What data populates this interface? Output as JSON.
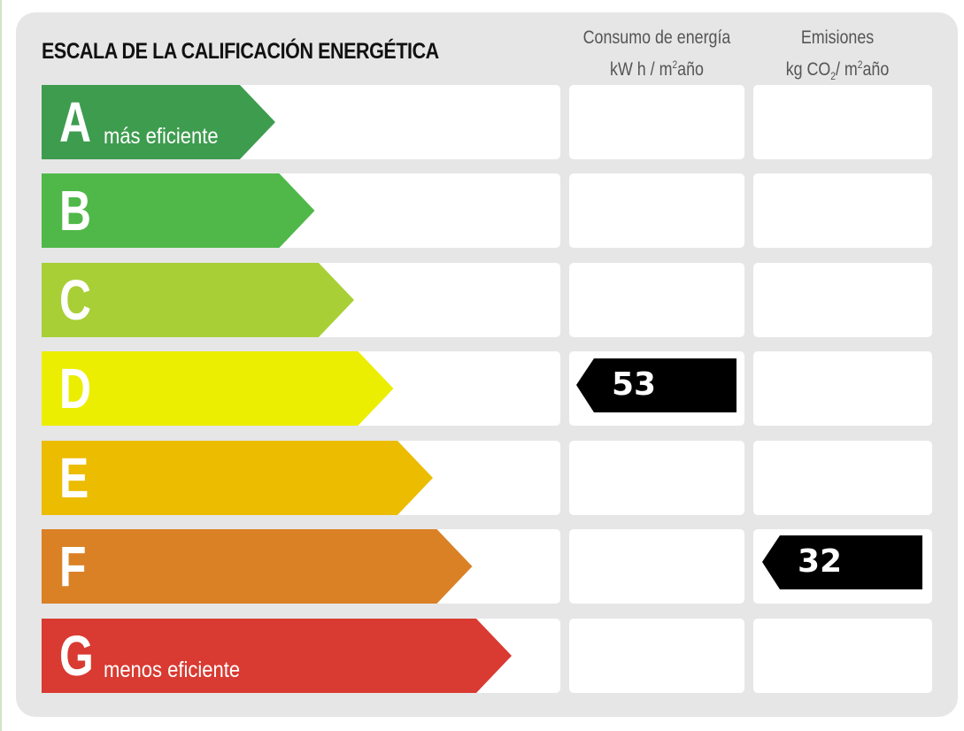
{
  "title": "ESCALA DE LA CALIFICACIÓN ENERGÉTICA",
  "columns": {
    "consumo": {
      "line1": "Consumo de energía",
      "line2_pre": "kW h / m",
      "sup": "2",
      "line2_post": "año"
    },
    "emisiones": {
      "line1": "Emisiones",
      "line2_pre": "kg CO",
      "sub": "2",
      "line2_post": "/ m",
      "sup": "2",
      "line2_end": "año"
    }
  },
  "ratings": [
    {
      "letter": "A",
      "label": "más eficiente",
      "color": "#3e9c4f"
    },
    {
      "letter": "B",
      "label": "",
      "color": "#50b849"
    },
    {
      "letter": "C",
      "label": "",
      "color": "#a8cf36"
    },
    {
      "letter": "D",
      "label": "",
      "color": "#ebee00"
    },
    {
      "letter": "E",
      "label": "",
      "color": "#ecbc00"
    },
    {
      "letter": "F",
      "label": "",
      "color": "#da8126"
    },
    {
      "letter": "G",
      "label": "menos eficiente",
      "color": "#d93a31"
    }
  ],
  "consumo_value": {
    "value": "53",
    "rating": "D"
  },
  "emisiones_value": {
    "value": "32",
    "rating": "F"
  }
}
